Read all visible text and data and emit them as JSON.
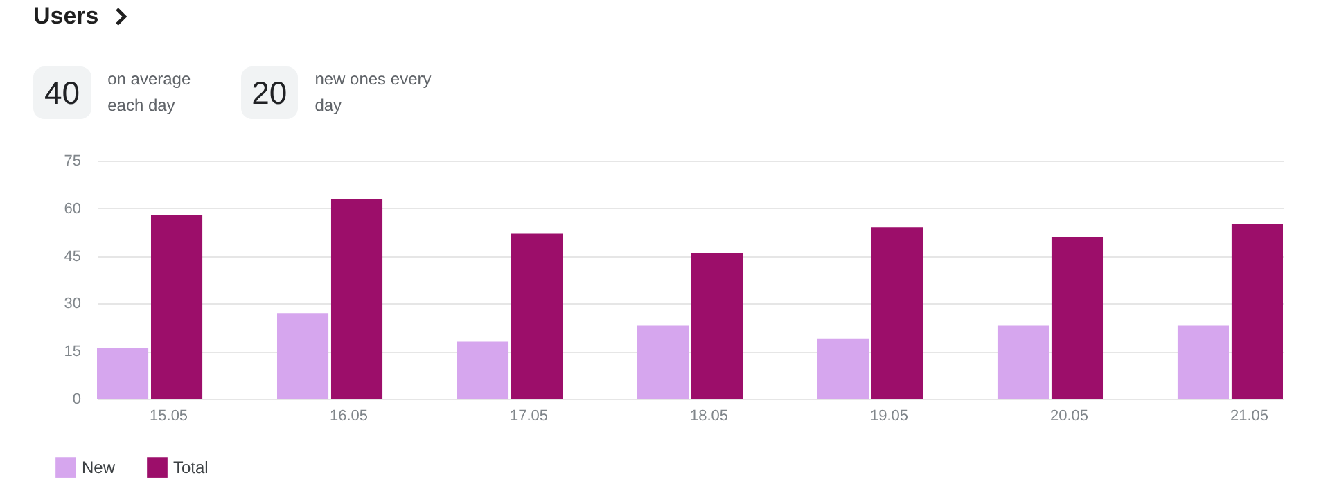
{
  "chart_data": {
    "type": "bar",
    "title": "Users",
    "annotations": [
      "40",
      "on average each day",
      "20",
      "new ones every day"
    ],
    "categories": [
      "15.05",
      "16.05",
      "17.05",
      "18.05",
      "19.05",
      "20.05",
      "21.05"
    ],
    "series": [
      {
        "name": "New",
        "color": "#d6a6ee",
        "values": [
          16,
          27,
          18,
          23,
          19,
          23,
          23
        ]
      },
      {
        "name": "Total",
        "color": "#9c0e6a",
        "values": [
          58,
          63,
          52,
          46,
          54,
          51,
          55
        ]
      }
    ],
    "ylim": [
      0,
      75
    ],
    "yticks": [
      0,
      15,
      30,
      45,
      60,
      75
    ],
    "grid": "y",
    "legend": "bottom left"
  }
}
